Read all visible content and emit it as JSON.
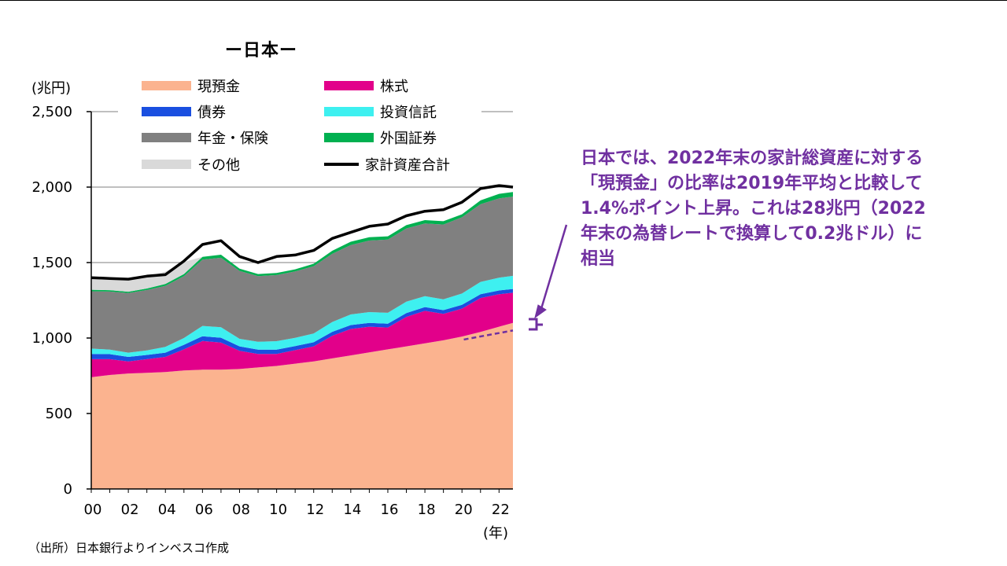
{
  "chart_data": {
    "type": "area",
    "title": "ー日本ー",
    "ylabel": "(兆円)",
    "xlabel": "(年)",
    "ylim": [
      0,
      2500
    ],
    "yticks": [
      0,
      500,
      1000,
      1500,
      2000,
      2500
    ],
    "ytick_labels": [
      "0",
      "500",
      "1,000",
      "1,500",
      "2,000",
      "2,500"
    ],
    "xtick_labels": [
      "00",
      "02",
      "04",
      "06",
      "08",
      "10",
      "12",
      "14",
      "16",
      "18",
      "20",
      "22"
    ],
    "x_start": 2000,
    "x_end": 2022.75,
    "grid": "horizontal at 1,500 / 2,000 / 2,500",
    "legend_position": "top (inside plot area)",
    "x_years": [
      2000,
      2001,
      2002,
      2003,
      2004,
      2005,
      2006,
      2007,
      2008,
      2009,
      2010,
      2011,
      2012,
      2013,
      2014,
      2015,
      2016,
      2017,
      2018,
      2019,
      2020,
      2021,
      2022,
      2022.75
    ],
    "series": [
      {
        "name": "現預金",
        "color": "#fbb38f",
        "values": [
          740,
          755,
          765,
          770,
          775,
          785,
          790,
          790,
          795,
          805,
          815,
          830,
          845,
          865,
          885,
          905,
          925,
          945,
          965,
          985,
          1010,
          1040,
          1075,
          1100
        ]
      },
      {
        "name": "株式",
        "color": "#e2008a",
        "values": [
          120,
          105,
          80,
          90,
          100,
          140,
          190,
          180,
          120,
          90,
          80,
          90,
          100,
          150,
          175,
          170,
          145,
          195,
          215,
          175,
          185,
          225,
          215,
          200
        ]
      },
      {
        "name": "債券",
        "color": "#1a4fe0",
        "values": [
          35,
          33,
          30,
          28,
          28,
          30,
          32,
          32,
          30,
          28,
          28,
          27,
          27,
          26,
          26,
          25,
          25,
          25,
          25,
          25,
          25,
          25,
          25,
          25
        ]
      },
      {
        "name": "投資信託",
        "color": "#3ef0f0",
        "values": [
          35,
          30,
          28,
          30,
          38,
          45,
          68,
          70,
          50,
          52,
          56,
          54,
          58,
          65,
          70,
          72,
          72,
          76,
          72,
          72,
          75,
          82,
          85,
          87
        ]
      },
      {
        "name": "年金・保険",
        "color": "#808080",
        "values": [
          380,
          385,
          395,
          400,
          405,
          410,
          440,
          460,
          450,
          435,
          438,
          440,
          446,
          452,
          460,
          474,
          485,
          485,
          482,
          495,
          505,
          515,
          525,
          525
        ]
      },
      {
        "name": "外国証券",
        "color": "#00b050",
        "values": [
          10,
          9,
          9,
          10,
          12,
          14,
          18,
          20,
          15,
          14,
          14,
          14,
          16,
          20,
          22,
          22,
          22,
          22,
          22,
          22,
          20,
          25,
          30,
          30
        ]
      },
      {
        "name": "その他",
        "color": "#d9d9d9",
        "values": [
          72,
          75,
          80,
          80,
          82,
          80,
          0,
          0,
          0,
          0,
          0,
          0,
          0,
          0,
          0,
          0,
          0,
          0,
          0,
          0,
          0,
          0,
          0,
          0
        ]
      }
    ],
    "total_line": {
      "name": "家計資産合計",
      "color": "#000000",
      "values": [
        1400,
        1395,
        1390,
        1410,
        1420,
        1510,
        1620,
        1645,
        1540,
        1500,
        1540,
        1550,
        1580,
        1660,
        1700,
        1740,
        1755,
        1810,
        1840,
        1850,
        1900,
        1990,
        2010,
        2000
      ]
    },
    "cash_trend_line": {
      "x": [
        2020.1,
        2022.75
      ],
      "y": [
        990,
        1050
      ],
      "color": "#7030a0",
      "style": "dashed"
    }
  },
  "annotation": {
    "lines": [
      "日本では、2022年末の家計総資産に対する",
      "「現預金」の比率は2019年平均と比較して",
      "1.4%ポイント上昇。これは28兆円（2022",
      "年末の為替レートで換算して0.2兆ドル）に",
      "相当"
    ],
    "color": "#7030a0"
  },
  "source_note": "（出所）日本銀行よりインベスコ作成"
}
